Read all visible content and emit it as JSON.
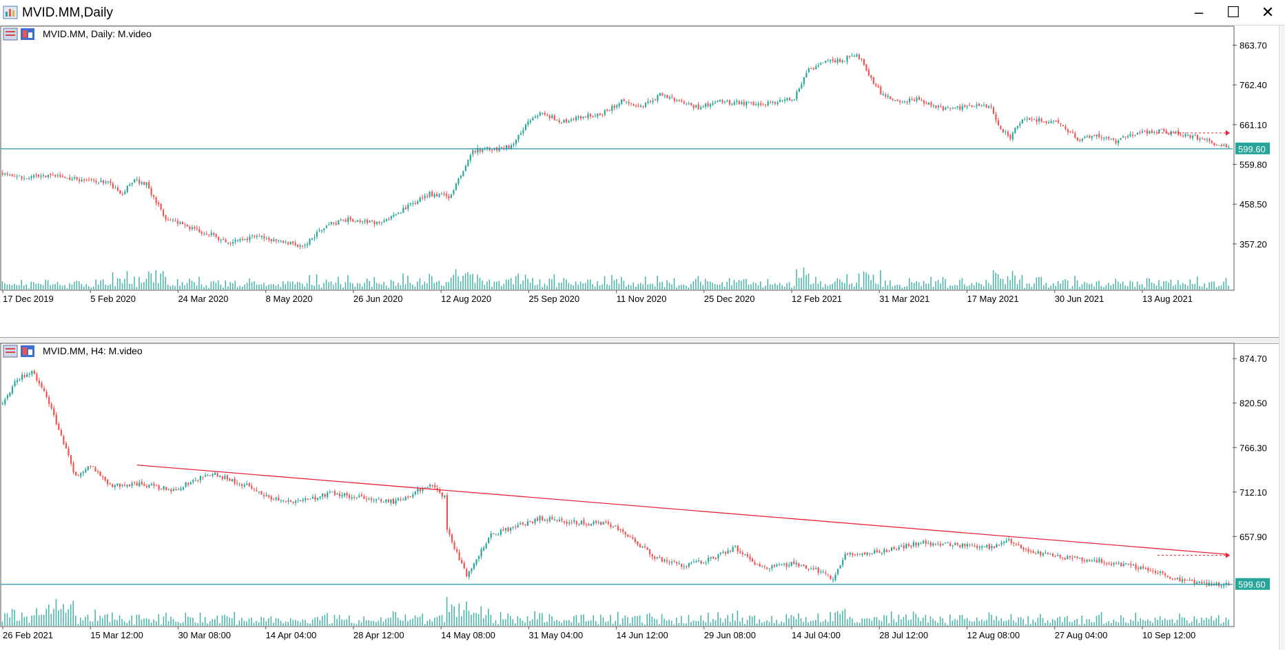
{
  "window": {
    "title": "MVID.MM,Daily",
    "minimize": "–",
    "maximize": "☐",
    "close": "✕"
  },
  "colors": {
    "bull": "#26a69a",
    "bear": "#ef5350",
    "volume": "#26a69a",
    "level_line": "#2196a8",
    "trend_line": "#e8243a",
    "price_label_bg": "#26a69a"
  },
  "chart_data": [
    {
      "type": "candlestick",
      "symbol": "MVID.MM",
      "timeframe": "Daily",
      "header": "MVID.MM, Daily:  M.video",
      "ylim": [
        255,
        905
      ],
      "y_ticks": [
        "863.70",
        "762.40",
        "661.10",
        "559.80",
        "458.50",
        "357.20"
      ],
      "x_ticks": [
        "17 Dec 2019",
        "5 Feb 2020",
        "24 Mar 2020",
        "8 May 2020",
        "26 Jun 2020",
        "12 Aug 2020",
        "25 Sep 2020",
        "11 Nov 2020",
        "25 Dec 2020",
        "12 Feb 2021",
        "31 Mar 2021",
        "17 May 2021",
        "30 Jun 2021",
        "13 Aug 2021"
      ],
      "current_price": "599.60",
      "close_path": [
        {
          "i": 0,
          "p": 540
        },
        {
          "i": 8,
          "p": 525
        },
        {
          "i": 20,
          "p": 530
        },
        {
          "i": 35,
          "p": 520
        },
        {
          "i": 45,
          "p": 512
        },
        {
          "i": 49,
          "p": 480
        },
        {
          "i": 55,
          "p": 520
        },
        {
          "i": 60,
          "p": 510
        },
        {
          "i": 68,
          "p": 420
        },
        {
          "i": 75,
          "p": 405
        },
        {
          "i": 85,
          "p": 385
        },
        {
          "i": 95,
          "p": 360
        },
        {
          "i": 105,
          "p": 375
        },
        {
          "i": 115,
          "p": 365
        },
        {
          "i": 125,
          "p": 350
        },
        {
          "i": 135,
          "p": 405
        },
        {
          "i": 145,
          "p": 420
        },
        {
          "i": 155,
          "p": 410
        },
        {
          "i": 162,
          "p": 425
        },
        {
          "i": 170,
          "p": 455
        },
        {
          "i": 178,
          "p": 485
        },
        {
          "i": 186,
          "p": 478
        },
        {
          "i": 192,
          "p": 540
        },
        {
          "i": 196,
          "p": 595
        },
        {
          "i": 205,
          "p": 600
        },
        {
          "i": 212,
          "p": 605
        },
        {
          "i": 218,
          "p": 660
        },
        {
          "i": 225,
          "p": 695
        },
        {
          "i": 232,
          "p": 668
        },
        {
          "i": 240,
          "p": 680
        },
        {
          "i": 250,
          "p": 690
        },
        {
          "i": 258,
          "p": 720
        },
        {
          "i": 266,
          "p": 705
        },
        {
          "i": 275,
          "p": 740
        },
        {
          "i": 282,
          "p": 720
        },
        {
          "i": 290,
          "p": 705
        },
        {
          "i": 300,
          "p": 720
        },
        {
          "i": 310,
          "p": 715
        },
        {
          "i": 320,
          "p": 718
        },
        {
          "i": 330,
          "p": 730
        },
        {
          "i": 336,
          "p": 800
        },
        {
          "i": 342,
          "p": 820
        },
        {
          "i": 350,
          "p": 825
        },
        {
          "i": 356,
          "p": 845
        },
        {
          "i": 361,
          "p": 790
        },
        {
          "i": 366,
          "p": 740
        },
        {
          "i": 372,
          "p": 720
        },
        {
          "i": 382,
          "p": 725
        },
        {
          "i": 392,
          "p": 700
        },
        {
          "i": 402,
          "p": 705
        },
        {
          "i": 412,
          "p": 710
        },
        {
          "i": 416,
          "p": 645
        },
        {
          "i": 420,
          "p": 630
        },
        {
          "i": 424,
          "p": 668
        },
        {
          "i": 432,
          "p": 675
        },
        {
          "i": 440,
          "p": 665
        },
        {
          "i": 448,
          "p": 625
        },
        {
          "i": 456,
          "p": 635
        },
        {
          "i": 464,
          "p": 620
        },
        {
          "i": 472,
          "p": 640
        },
        {
          "i": 480,
          "p": 645
        },
        {
          "i": 490,
          "p": 640
        },
        {
          "i": 498,
          "p": 628
        },
        {
          "i": 506,
          "p": 612
        },
        {
          "i": 511,
          "p": 600
        }
      ]
    },
    {
      "type": "candlestick",
      "symbol": "MVID.MM",
      "timeframe": "H4",
      "header": "MVID.MM, H4:  M.video",
      "ylim": [
        575,
        890
      ],
      "y_ticks": [
        "874.70",
        "820.50",
        "766.30",
        "712.10",
        "657.90"
      ],
      "x_ticks": [
        "26 Feb 2021",
        "15 Mar 12:00",
        "30 Mar 08:00",
        "14 Apr 04:00",
        "28 Apr 12:00",
        "14 May 08:00",
        "31 May 04:00",
        "14 Jun 12:00",
        "29 Jun 08:00",
        "14 Jul 04:00",
        "28 Jul 12:00",
        "12 Aug 08:00",
        "27 Aug 04:00",
        "10 Sep 12:00"
      ],
      "current_price": "599.60",
      "trend_line": {
        "from": {
          "i": 55,
          "p": 745
        },
        "to": {
          "i": 502,
          "p": 636
        }
      },
      "close_path": [
        {
          "i": 0,
          "p": 820
        },
        {
          "i": 6,
          "p": 850
        },
        {
          "i": 12,
          "p": 860
        },
        {
          "i": 18,
          "p": 830
        },
        {
          "i": 24,
          "p": 780
        },
        {
          "i": 30,
          "p": 730
        },
        {
          "i": 36,
          "p": 745
        },
        {
          "i": 44,
          "p": 720
        },
        {
          "i": 55,
          "p": 722
        },
        {
          "i": 70,
          "p": 715
        },
        {
          "i": 85,
          "p": 735
        },
        {
          "i": 100,
          "p": 720
        },
        {
          "i": 110,
          "p": 705
        },
        {
          "i": 120,
          "p": 700
        },
        {
          "i": 135,
          "p": 710
        },
        {
          "i": 150,
          "p": 705
        },
        {
          "i": 160,
          "p": 700
        },
        {
          "i": 175,
          "p": 720
        },
        {
          "i": 181,
          "p": 705
        },
        {
          "i": 182,
          "p": 665
        },
        {
          "i": 190,
          "p": 610
        },
        {
          "i": 200,
          "p": 660
        },
        {
          "i": 210,
          "p": 670
        },
        {
          "i": 220,
          "p": 680
        },
        {
          "i": 235,
          "p": 675
        },
        {
          "i": 250,
          "p": 672
        },
        {
          "i": 258,
          "p": 655
        },
        {
          "i": 268,
          "p": 630
        },
        {
          "i": 280,
          "p": 622
        },
        {
          "i": 290,
          "p": 630
        },
        {
          "i": 300,
          "p": 645
        },
        {
          "i": 310,
          "p": 620
        },
        {
          "i": 325,
          "p": 625
        },
        {
          "i": 335,
          "p": 615
        },
        {
          "i": 340,
          "p": 605
        },
        {
          "i": 345,
          "p": 635
        },
        {
          "i": 360,
          "p": 640
        },
        {
          "i": 375,
          "p": 650
        },
        {
          "i": 390,
          "p": 648
        },
        {
          "i": 405,
          "p": 645
        },
        {
          "i": 412,
          "p": 652
        },
        {
          "i": 420,
          "p": 640
        },
        {
          "i": 435,
          "p": 632
        },
        {
          "i": 450,
          "p": 628
        },
        {
          "i": 465,
          "p": 620
        },
        {
          "i": 475,
          "p": 612
        },
        {
          "i": 485,
          "p": 603
        },
        {
          "i": 495,
          "p": 600
        },
        {
          "i": 502,
          "p": 599
        }
      ]
    }
  ]
}
